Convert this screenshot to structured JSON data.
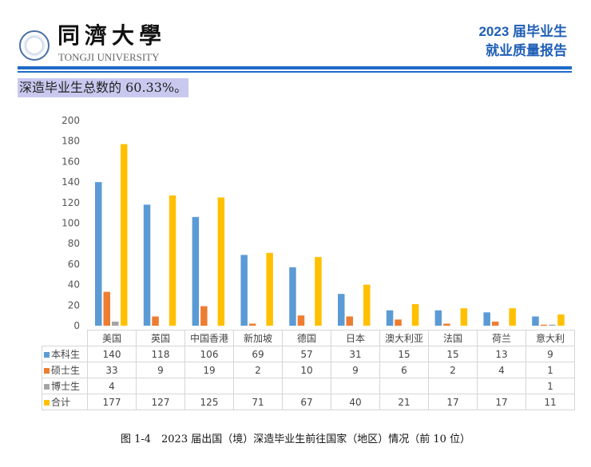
{
  "header": {
    "logo_cn": "同濟大學",
    "logo_en": "TONGJI UNIVERSITY",
    "report_line1": "2023 届毕业生",
    "report_line2": "就业质量报告"
  },
  "intro_text": "深造毕业生总数的 60.33%。",
  "caption": "图 1-4　2023 届出国（境）深造毕业生前往国家（地区）情况（前 10 位）",
  "chart_data": {
    "type": "bar",
    "categories": [
      "美国",
      "英国",
      "中国香港",
      "新加坡",
      "德国",
      "日本",
      "澳大利亚",
      "法国",
      "荷兰",
      "意大利"
    ],
    "series": [
      {
        "name": "本科生",
        "color": "#5b9bd5",
        "values": [
          140,
          118,
          106,
          69,
          57,
          31,
          15,
          15,
          13,
          9
        ]
      },
      {
        "name": "硕士生",
        "color": "#ed7d31",
        "values": [
          33,
          9,
          19,
          2,
          10,
          9,
          6,
          2,
          4,
          1
        ]
      },
      {
        "name": "博士生",
        "color": "#a5a5a5",
        "values": [
          4,
          null,
          null,
          null,
          null,
          null,
          null,
          null,
          null,
          1
        ]
      },
      {
        "name": "合计",
        "color": "#ffc000",
        "values": [
          177,
          127,
          125,
          71,
          67,
          40,
          21,
          17,
          17,
          11
        ]
      }
    ],
    "ylim": [
      0,
      200
    ],
    "yticks": [
      "0",
      "20",
      "40",
      "60",
      "80",
      "100",
      "120",
      "140",
      "160",
      "180",
      "200"
    ],
    "legend": "data-table"
  }
}
